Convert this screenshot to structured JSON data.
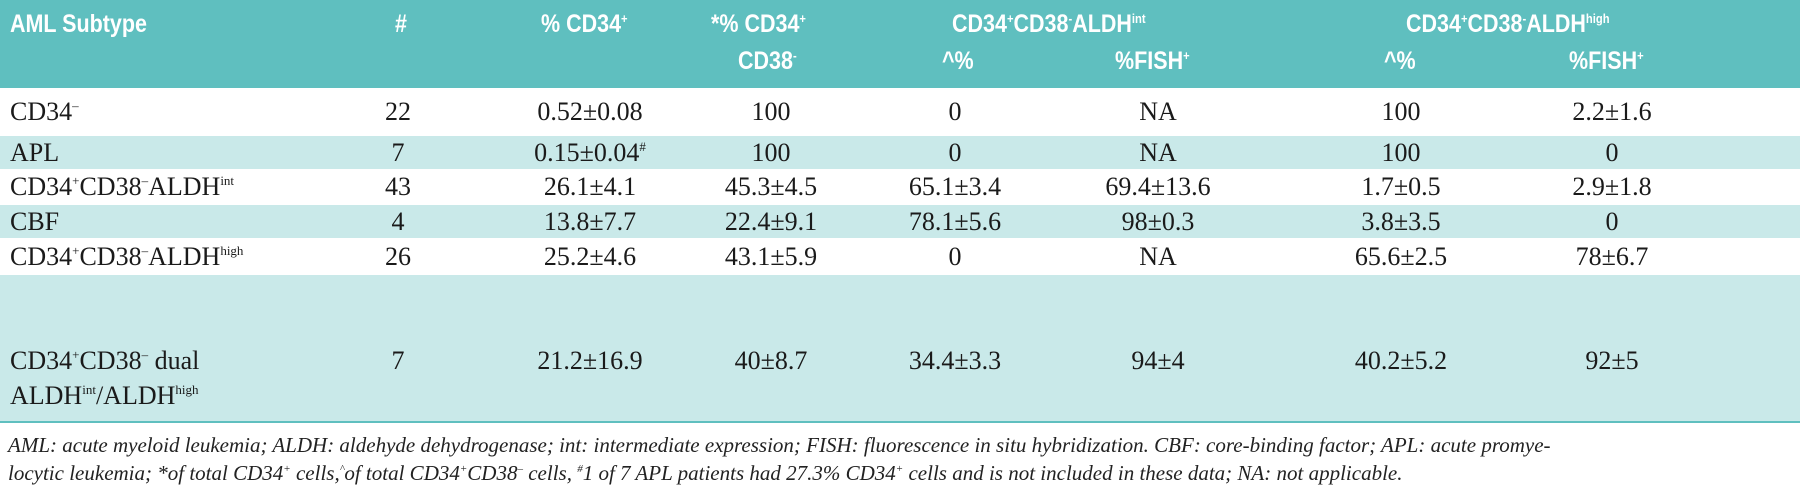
{
  "header": {
    "subtype": "AML Subtype",
    "n": "#",
    "pct_cd34": "% CD34",
    "pct_cd34_sup": "+",
    "pct_cd38_line1": "*% CD34",
    "pct_cd38_line1_sup": "+",
    "pct_cd38_line2": "CD38",
    "pct_cd38_line2_sup": "-",
    "group_int": {
      "a": "CD34",
      "a_sup": "+",
      "b": "CD38",
      "b_sup": "-",
      "c": "ALDH",
      "c_sup": "int"
    },
    "group_high": {
      "a": "CD34",
      "a_sup": "+",
      "b": "CD38",
      "b_sup": "-",
      "c": "ALDH",
      "c_sup": "high"
    },
    "caret_pct": "^%",
    "fish": "%FISH",
    "fish_sup": "+"
  },
  "rows": [
    {
      "label": "CD34",
      "label_sup": "–",
      "label2": "",
      "n": "22",
      "c1": "0.52±0.08",
      "c1_sup": "",
      "c2": "100",
      "c3": "0",
      "c4": "NA",
      "c5": "100",
      "c6": "2.2±1.6"
    },
    {
      "label": "APL",
      "label_sup": "",
      "label2": "",
      "n": "7",
      "c1": "0.15±0.04",
      "c1_sup": "#",
      "c2": "100",
      "c3": "0",
      "c4": "NA",
      "c5": "100",
      "c6": "0"
    },
    {
      "label": "CD34",
      "label_sup": "+",
      "l_b": "CD38",
      "l_b_sup": "–",
      "l_c": "ALDH",
      "l_c_sup": "int",
      "n": "43",
      "c1": "26.1±4.1",
      "c1_sup": "",
      "c2": "45.3±4.5",
      "c3": "65.1±3.4",
      "c4": "69.4±13.6",
      "c5": "1.7±0.5",
      "c6": "2.9±1.8"
    },
    {
      "label": "CBF",
      "label_sup": "",
      "label2": "",
      "n": "4",
      "c1": "13.8±7.7",
      "c1_sup": "",
      "c2": "22.4±9.1",
      "c3": "78.1±5.6",
      "c4": "98±0.3",
      "c5": "3.8±3.5",
      "c6": "0"
    },
    {
      "label": "CD34",
      "label_sup": "+",
      "l_b": "CD38",
      "l_b_sup": "–",
      "l_c": "ALDH",
      "l_c_sup": "high",
      "n": "26",
      "c1": "25.2±4.6",
      "c1_sup": "",
      "c2": "43.1±5.9",
      "c3": "0",
      "c4": "NA",
      "c5": "65.6±2.5",
      "c6": "78±6.7"
    },
    {
      "label": "CD34",
      "label_sup": "+",
      "l_b": "CD38",
      "l_b_sup": "–",
      "l_b_tail": " dual",
      "l2_a": "ALDH",
      "l2_a_sup": "int",
      "l2_b": "/ALDH",
      "l2_b_sup": "high",
      "n": "7",
      "c1": "21.2±16.9",
      "c1_sup": "",
      "c2": "40±8.7",
      "c3": "34.4±3.3",
      "c4": "94±4",
      "c5": "40.2±5.2",
      "c6": "92±5"
    }
  ],
  "footnote": {
    "p1": "AML: acute myeloid leukemia; ALDH: aldehyde dehydrogenase; int: intermediate expression; FISH: fluorescence in situ hybridization. CBF: core-binding factor; APL: acute promye-",
    "p2a": "locytic leukemia; *of total CD34",
    "p2a_sup": "+",
    "p2b": " cells,",
    "p2b_sup": "^",
    "p2c": "of total CD34",
    "p2c_sup": "+",
    "p2d": "CD38",
    "p2d_sup": "–",
    "p2e": " cells, ",
    "p2e_sup": "#",
    "p2f": "1 of 7 APL patients had 27.3% CD34",
    "p2f_sup": "+",
    "p2g": " cells and is not included in these data; NA: not applicable."
  },
  "colors": {
    "header_bg": "#5fbfbf",
    "alt_row_bg": "#c9e9e9",
    "header_text": "#ffffff"
  }
}
